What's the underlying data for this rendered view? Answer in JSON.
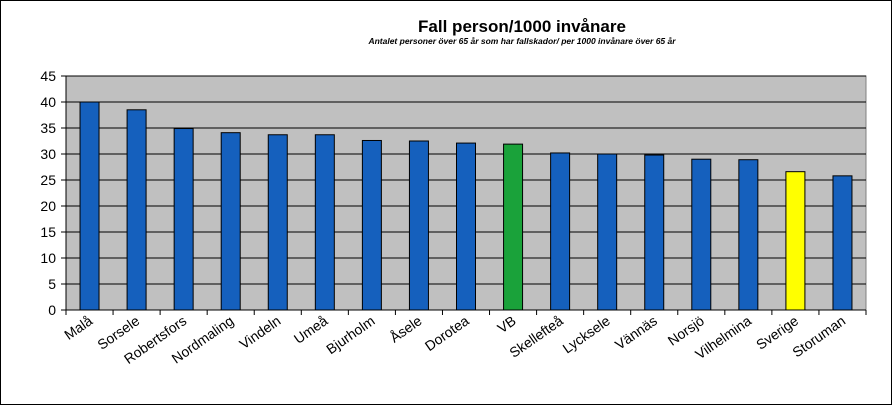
{
  "chart_data": {
    "type": "bar",
    "title": "Fall person/1000 invånare",
    "subtitle": "Antalet personer över 65 år som har fallskador/ per 1000 invånare över 65 år",
    "xlabel": "",
    "ylabel": "",
    "ylim": [
      0,
      45
    ],
    "yticks": [
      0,
      5,
      10,
      15,
      20,
      25,
      30,
      35,
      40,
      45
    ],
    "grid": true,
    "legend": "none",
    "categories": [
      "Malå",
      "Sorsele",
      "Robertsfors",
      "Nordmaling",
      "Vindeln",
      "Umeå",
      "Bjurholm",
      "Åsele",
      "Dorotea",
      "VB",
      "Skellefteå",
      "Lycksele",
      "Vännäs",
      "Norsjö",
      "Vilhelmina",
      "Sverige",
      "Storuman"
    ],
    "values": [
      40.0,
      38.5,
      34.9,
      34.1,
      33.7,
      33.7,
      32.6,
      32.5,
      32.1,
      31.9,
      30.2,
      30.0,
      29.8,
      29.0,
      28.9,
      26.6,
      25.8
    ],
    "colors": {
      "default": "#1560bd",
      "highlights": {
        "VB": "#1aa23a",
        "Sverige": "#ffff00"
      },
      "plot_background": "#c0c0c0"
    }
  }
}
